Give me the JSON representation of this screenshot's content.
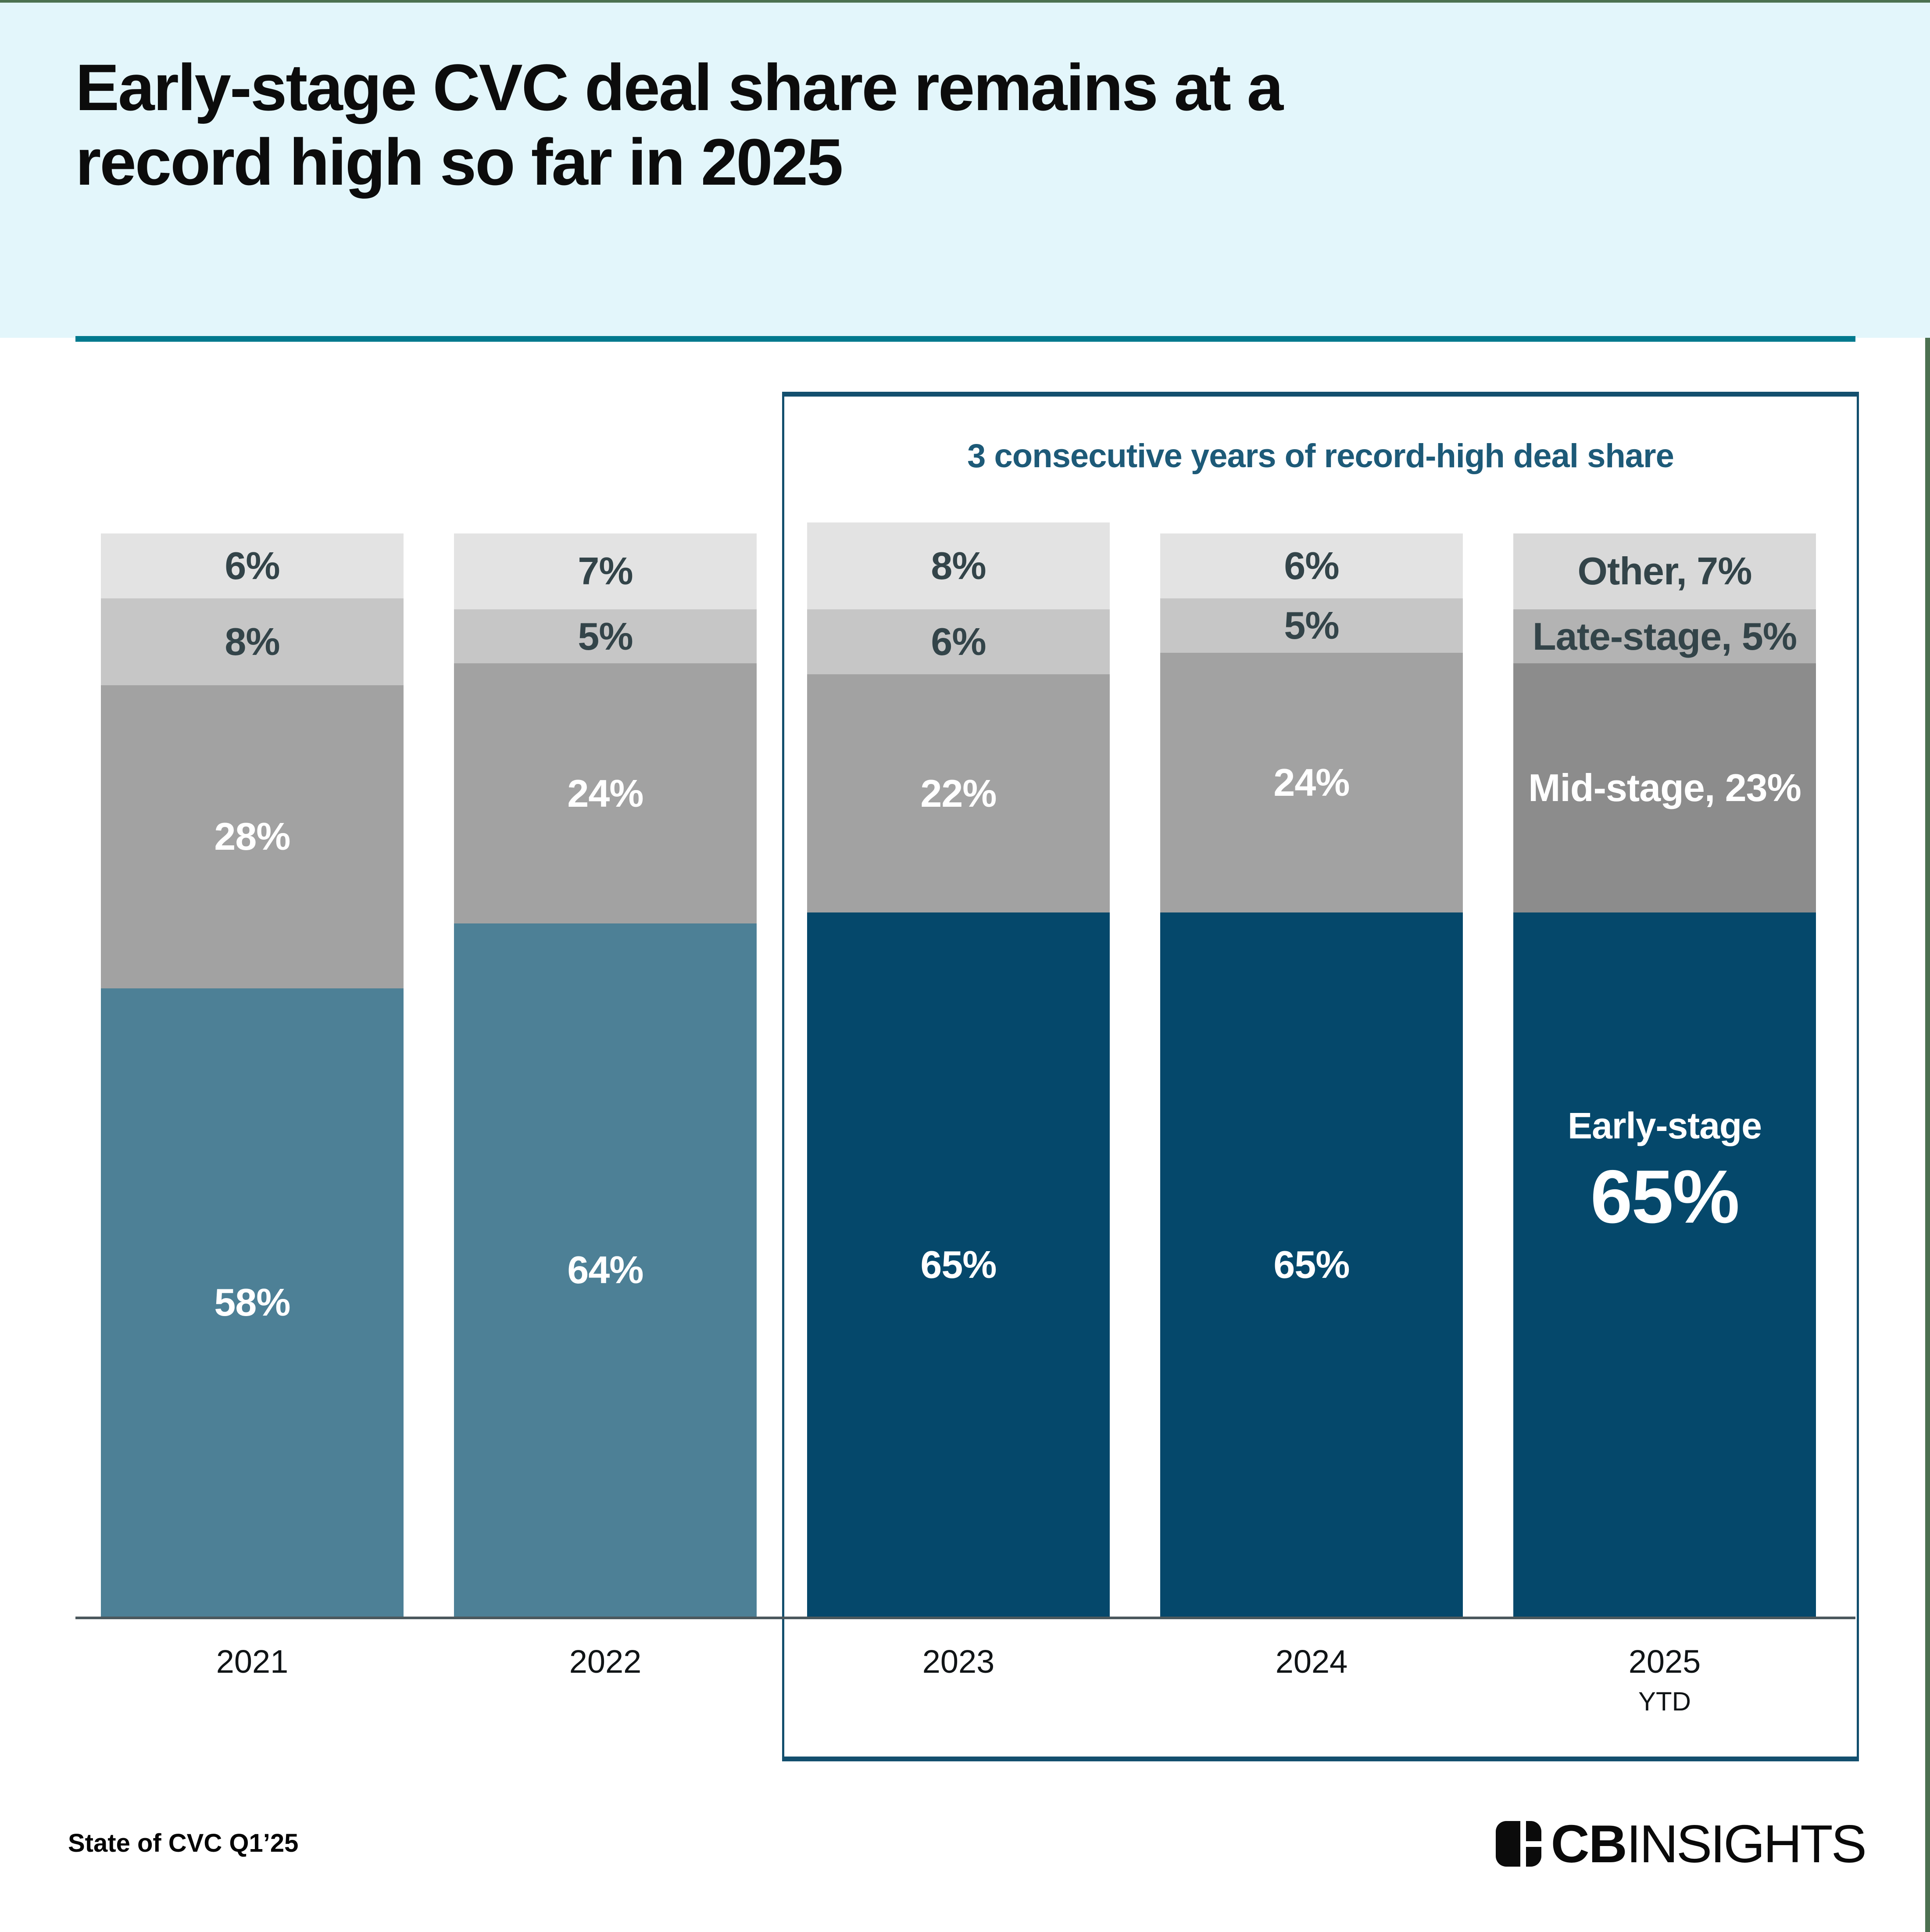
{
  "header": {
    "title_line1": "Early-stage CVC deal share remains at a",
    "title_line2": "record high so far in 2025"
  },
  "annotation": {
    "title": "3 consecutive years of record-high deal share",
    "years_covered": [
      "2023",
      "2024",
      "2025 YTD"
    ]
  },
  "chart_data": {
    "type": "bar",
    "stacked": true,
    "unit": "%",
    "ylim": [
      0,
      100
    ],
    "title": "Early-stage CVC deal share remains at a record high so far in 2025",
    "categories": [
      "2021",
      "2022",
      "2023",
      "2024",
      "2025"
    ],
    "category_sublabels": [
      "",
      "",
      "",
      "",
      "YTD"
    ],
    "series": [
      {
        "name": "Early-stage",
        "values": [
          58,
          64,
          65,
          65,
          65
        ]
      },
      {
        "name": "Mid-stage",
        "values": [
          28,
          24,
          22,
          24,
          23
        ]
      },
      {
        "name": "Late-stage",
        "values": [
          8,
          5,
          6,
          5,
          5
        ]
      },
      {
        "name": "Other",
        "values": [
          6,
          7,
          8,
          6,
          7
        ]
      }
    ],
    "annotation": "3 consecutive years of record-high deal share",
    "legend_position": "none",
    "grid": false,
    "bars": [
      {
        "year": "2021",
        "year_sub": "",
        "segments": [
          {
            "name": "Early-stage",
            "value": 58,
            "label": "58%",
            "bg": "#4d8096",
            "fg": "#ffffff"
          },
          {
            "name": "Mid-stage",
            "value": 28,
            "label": "28%",
            "bg": "#a2a2a2",
            "fg": "#ffffff"
          },
          {
            "name": "Late-stage",
            "value": 8,
            "label": "8%",
            "bg": "#c6c6c6",
            "fg": "#334449"
          },
          {
            "name": "Other",
            "value": 6,
            "label": "6%",
            "bg": "#e3e3e3",
            "fg": "#334449"
          }
        ]
      },
      {
        "year": "2022",
        "year_sub": "",
        "segments": [
          {
            "name": "Early-stage",
            "value": 64,
            "label": "64%",
            "bg": "#4d8096",
            "fg": "#ffffff"
          },
          {
            "name": "Mid-stage",
            "value": 24,
            "label": "24%",
            "bg": "#a2a2a2",
            "fg": "#ffffff"
          },
          {
            "name": "Late-stage",
            "value": 5,
            "label": "5%",
            "bg": "#c6c6c6",
            "fg": "#334449"
          },
          {
            "name": "Other",
            "value": 7,
            "label": "7%",
            "bg": "#e3e3e3",
            "fg": "#334449"
          }
        ]
      },
      {
        "year": "2023",
        "year_sub": "",
        "segments": [
          {
            "name": "Early-stage",
            "value": 65,
            "label": "65%",
            "bg": "#05486b",
            "fg": "#ffffff"
          },
          {
            "name": "Mid-stage",
            "value": 22,
            "label": "22%",
            "bg": "#a2a2a2",
            "fg": "#ffffff"
          },
          {
            "name": "Late-stage",
            "value": 6,
            "label": "6%",
            "bg": "#c6c6c6",
            "fg": "#334449"
          },
          {
            "name": "Other",
            "value": 8,
            "label": "8%",
            "bg": "#e3e3e3",
            "fg": "#334449"
          }
        ]
      },
      {
        "year": "2024",
        "year_sub": "",
        "segments": [
          {
            "name": "Early-stage",
            "value": 65,
            "label": "65%",
            "bg": "#05486b",
            "fg": "#ffffff"
          },
          {
            "name": "Mid-stage",
            "value": 24,
            "label": "24%",
            "bg": "#a2a2a2",
            "fg": "#ffffff"
          },
          {
            "name": "Late-stage",
            "value": 5,
            "label": "5%",
            "bg": "#c6c6c6",
            "fg": "#334449"
          },
          {
            "name": "Other",
            "value": 6,
            "label": "6%",
            "bg": "#e3e3e3",
            "fg": "#334449"
          }
        ]
      },
      {
        "year": "2025",
        "year_sub": "YTD",
        "segments": [
          {
            "name": "Early-stage",
            "value": 65,
            "label": "65%",
            "label_title": "Early-stage",
            "bg": "#05486b",
            "fg": "#ffffff"
          },
          {
            "name": "Mid-stage",
            "value": 23,
            "label": "Mid-stage, 23%",
            "bg": "#8c8c8c",
            "fg": "#ffffff"
          },
          {
            "name": "Late-stage",
            "value": 5,
            "label": "Late-stage, 5%",
            "bg": "#b3b3b3",
            "fg": "#334449"
          },
          {
            "name": "Other",
            "value": 7,
            "label": "Other, 7%",
            "bg": "#d9d9d9",
            "fg": "#334449"
          }
        ]
      }
    ]
  },
  "colors": {
    "header_bg": "#e3f6fb",
    "divider_teal": "#00798e",
    "box_border": "#134f6e",
    "annotation_text": "#1d5a78",
    "early_stage_default": "#4d8096",
    "early_stage_highlight": "#05486b",
    "edge_strip_green": "#4c7150",
    "axis_line": "#4b585d"
  },
  "footer": {
    "source": "State of CVC Q1’25",
    "brand_cb": "CB",
    "brand_insights": "INSIGHTS"
  }
}
